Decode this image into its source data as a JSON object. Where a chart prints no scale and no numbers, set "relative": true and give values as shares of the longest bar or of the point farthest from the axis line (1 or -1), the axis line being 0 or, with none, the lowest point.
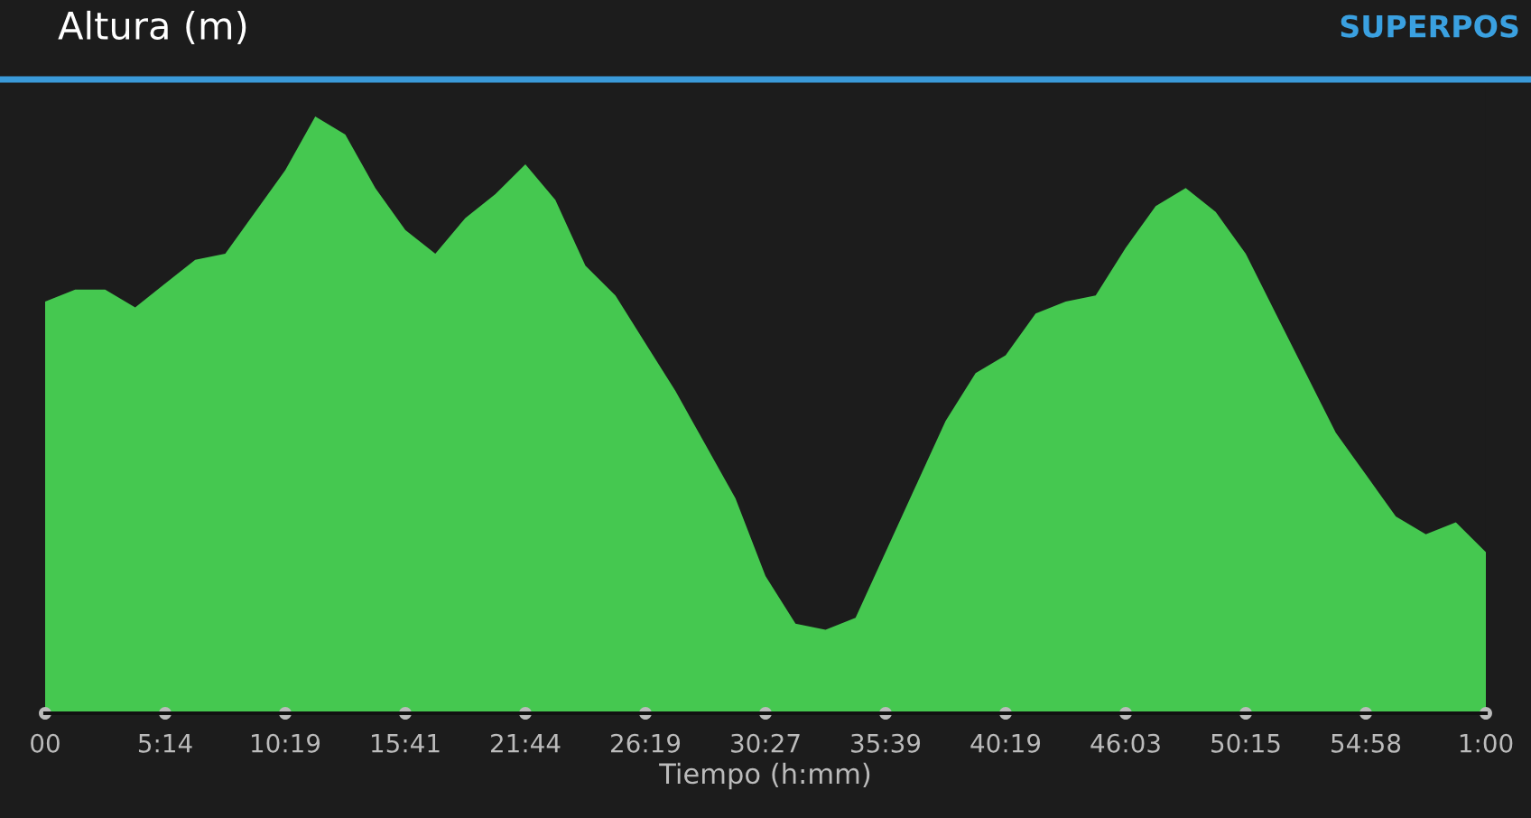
{
  "chart_data": {
    "type": "area",
    "title": "Altura (m)",
    "xlabel": "Tiempo (h:mm)",
    "annotations": [
      "SUPERPOS"
    ],
    "relative": true,
    "grid": false,
    "legend": false,
    "categories": [
      "00",
      null,
      null,
      null,
      "5:14",
      null,
      null,
      null,
      "10:19",
      null,
      null,
      null,
      "15:41",
      null,
      null,
      null,
      "21:44",
      null,
      null,
      null,
      "26:19",
      null,
      null,
      null,
      "30:27",
      null,
      null,
      null,
      "35:39",
      null,
      null,
      null,
      "40:19",
      null,
      null,
      null,
      "46:03",
      null,
      null,
      null,
      "50:15",
      null,
      null,
      null,
      "54:58",
      null,
      null,
      null,
      "1:00"
    ],
    "series": [
      {
        "color": "#45c850",
        "values": [
          0.69,
          0.71,
          0.71,
          0.68,
          0.72,
          0.76,
          0.77,
          0.84,
          0.91,
          1.0,
          0.97,
          0.88,
          0.81,
          0.77,
          0.83,
          0.87,
          0.92,
          0.86,
          0.75,
          0.7,
          0.62,
          0.54,
          0.45,
          0.36,
          0.23,
          0.15,
          0.14,
          0.16,
          0.27,
          0.38,
          0.49,
          0.57,
          0.6,
          0.67,
          0.69,
          0.7,
          0.78,
          0.85,
          0.88,
          0.84,
          0.77,
          0.67,
          0.57,
          0.47,
          0.4,
          0.33,
          0.3,
          0.32,
          0.27
        ]
      }
    ]
  }
}
